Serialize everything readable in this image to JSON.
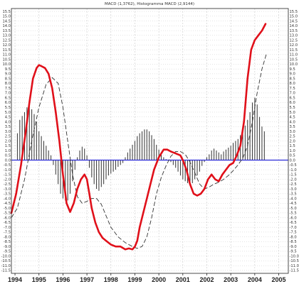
{
  "chart_data": {
    "type": "line",
    "title": "MACD (1,3762), Histogramma MACD (2,9144)",
    "xlabel": "",
    "ylabel": "",
    "xlim": [
      1993.85,
      2005.4
    ],
    "ylim": [
      -11.8,
      15.8
    ],
    "grid": true,
    "x_ticks": [
      "1994",
      "1995",
      "1996",
      "1997",
      "1998",
      "1999",
      "2000",
      "2001",
      "2002",
      "2003",
      "2004",
      "2005"
    ],
    "y_ticks": [
      15.5,
      15.0,
      14.5,
      14.0,
      13.5,
      13.0,
      12.5,
      12.0,
      11.5,
      11.0,
      10.5,
      10.0,
      9.5,
      9.0,
      8.5,
      8.0,
      7.5,
      7.0,
      6.5,
      6.0,
      5.5,
      5.0,
      4.5,
      4.0,
      3.5,
      3.0,
      2.5,
      2.0,
      1.5,
      1.0,
      0.5,
      0.0,
      -0.5,
      -1.0,
      -1.5,
      -2.0,
      -2.5,
      -3.0,
      -3.5,
      -4.0,
      -4.5,
      -5.0,
      -5.5,
      -6.0,
      -6.5,
      -7.0,
      -7.5,
      -8.0,
      -8.5,
      -9.0,
      -9.5,
      -10.0,
      -10.5,
      -11.0,
      -11.5
    ],
    "y_tick_labels": [
      "15.5",
      "15.0",
      "14.5",
      "14.0",
      "13.5",
      "13.0",
      "12.5",
      "12.0",
      "11.5",
      "11.0",
      "10.5",
      "10.0",
      "9.5",
      "9.0",
      "8.5",
      "8.0",
      "7.5",
      "7.0",
      "6.5",
      "6.0",
      "5.5",
      "5.0",
      "4.5",
      "4.0",
      "3.5",
      "3.0",
      "2.5",
      "2.0",
      "1.5",
      "1.0",
      "0.5",
      "0.0",
      "-0.5",
      "-1.0",
      "-1.5",
      "-2.0",
      "-2.5",
      "-3.0",
      "-3.5",
      "-4.0",
      "-4.5",
      "-5.0",
      "-5.5",
      "-6.0",
      "-6.5",
      "-7.0",
      "-7.5",
      "-8.0",
      "-8.5",
      "-9.0",
      "-9.5",
      "-10.0",
      "-10.5",
      "-11.0",
      "-11.5"
    ],
    "zero_line": 0,
    "colors": {
      "macd": "#e0101a",
      "signal": "#333333",
      "histogram": "#333333",
      "zero": "#2a2ad6",
      "grid": "#c8c8c8"
    },
    "series": [
      {
        "style": "solid",
        "x": [
          1993.85,
          1994.05,
          1994.25,
          1994.45,
          1994.6,
          1994.75,
          1994.9,
          1995.0,
          1995.1,
          1995.25,
          1995.4,
          1995.55,
          1995.7,
          1995.85,
          1996.0,
          1996.15,
          1996.3,
          1996.45,
          1996.6,
          1996.75,
          1996.9,
          1997.0,
          1997.1,
          1997.2,
          1997.35,
          1997.5,
          1997.65,
          1997.8,
          1998.0,
          1998.2,
          1998.4,
          1998.6,
          1998.75,
          1998.9,
          1999.0,
          1999.1,
          1999.2,
          1999.35,
          1999.5,
          1999.65,
          1999.8,
          2000.0,
          2000.2,
          2000.35,
          2000.5,
          2000.7,
          2000.9,
          2001.0,
          2001.15,
          2001.3,
          2001.45,
          2001.6,
          2001.75,
          2001.9,
          2002.05,
          2002.2,
          2002.35,
          2002.5,
          2002.65,
          2002.8,
          2002.95,
          2003.1,
          2003.25,
          2003.4,
          2003.55,
          2003.7,
          2003.85,
          2004.0,
          2004.15,
          2004.3,
          2004.45
        ],
        "y": [
          -5.5,
          -3.5,
          -0.5,
          3.0,
          6.0,
          8.5,
          9.6,
          9.9,
          9.8,
          9.6,
          9.0,
          7.5,
          5.0,
          2.0,
          -1.5,
          -4.5,
          -5.4,
          -4.5,
          -3.0,
          -2.0,
          -1.5,
          -2.0,
          -3.5,
          -5.0,
          -6.5,
          -7.5,
          -8.1,
          -8.4,
          -8.8,
          -9.0,
          -9.0,
          -9.3,
          -9.2,
          -9.3,
          -9.0,
          -8.4,
          -7.0,
          -5.5,
          -4.0,
          -2.5,
          -1.0,
          0.3,
          1.1,
          1.1,
          0.9,
          0.7,
          0.5,
          0.0,
          -1.0,
          -2.5,
          -3.5,
          -3.7,
          -3.5,
          -3.0,
          -2.0,
          -1.5,
          -2.0,
          -2.2,
          -1.5,
          -1.0,
          -0.5,
          -0.3,
          0.5,
          1.5,
          4.0,
          8.5,
          11.5,
          12.5,
          13.0,
          13.5,
          14.2
        ]
      },
      {
        "style": "dashed",
        "x": [
          1993.85,
          1994.1,
          1994.4,
          1994.7,
          1995.0,
          1995.3,
          1995.55,
          1995.8,
          1996.0,
          1996.2,
          1996.4,
          1996.6,
          1996.8,
          1997.0,
          1997.2,
          1997.4,
          1997.6,
          1997.8,
          1998.0,
          1998.3,
          1998.6,
          1998.9,
          1999.1,
          1999.3,
          1999.5,
          1999.7,
          1999.9,
          2000.1,
          2000.3,
          2000.5,
          2000.7,
          2000.9,
          2001.1,
          2001.3,
          2001.5,
          2001.7,
          2001.9,
          2002.1,
          2002.3,
          2002.5,
          2002.7,
          2002.9,
          2003.1,
          2003.3,
          2003.5,
          2003.7,
          2003.9,
          2004.1,
          2004.3,
          2004.5
        ],
        "y": [
          -6.0,
          -5.0,
          -2.0,
          2.0,
          5.5,
          7.9,
          8.6,
          8.0,
          5.5,
          2.0,
          -1.5,
          -3.8,
          -4.5,
          -4.3,
          -4.0,
          -4.0,
          -4.6,
          -5.8,
          -7.0,
          -8.0,
          -8.6,
          -9.0,
          -9.2,
          -9.0,
          -8.0,
          -6.0,
          -3.5,
          -1.8,
          -0.6,
          0.4,
          0.9,
          0.9,
          0.6,
          -0.2,
          -1.3,
          -2.5,
          -3.0,
          -2.8,
          -2.5,
          -2.3,
          -2.0,
          -1.6,
          -1.1,
          -0.5,
          0.2,
          1.5,
          4.0,
          7.0,
          9.5,
          11.2
        ]
      }
    ],
    "histogram": {
      "x": [
        1994.1,
        1994.2,
        1994.3,
        1994.4,
        1994.5,
        1994.6,
        1994.7,
        1994.8,
        1994.9,
        1995.0,
        1995.1,
        1995.2,
        1995.3,
        1995.4,
        1995.5,
        1995.6,
        1995.7,
        1995.8,
        1995.9,
        1996.0,
        1996.1,
        1996.2,
        1996.3,
        1996.4,
        1996.5,
        1996.6,
        1996.7,
        1996.8,
        1996.9,
        1997.0,
        1997.1,
        1997.2,
        1997.3,
        1997.4,
        1997.5,
        1997.6,
        1997.7,
        1997.8,
        1997.9,
        1998.0,
        1998.1,
        1998.2,
        1998.3,
        1998.4,
        1998.5,
        1998.6,
        1998.7,
        1998.8,
        1998.9,
        1999.0,
        1999.1,
        1999.2,
        1999.3,
        1999.4,
        1999.5,
        1999.6,
        1999.7,
        1999.8,
        1999.9,
        2000.0,
        2000.1,
        2000.2,
        2000.3,
        2000.4,
        2000.5,
        2000.6,
        2000.7,
        2000.8,
        2000.9,
        2001.0,
        2001.1,
        2001.2,
        2001.3,
        2001.4,
        2001.5,
        2001.6,
        2001.7,
        2001.8,
        2001.9,
        2002.0,
        2002.1,
        2002.2,
        2002.3,
        2002.4,
        2002.5,
        2002.6,
        2002.7,
        2002.8,
        2002.9,
        2003.0,
        2003.1,
        2003.2,
        2003.3,
        2003.4,
        2003.5,
        2003.6,
        2003.7,
        2003.8,
        2003.9,
        2004.0,
        2004.1,
        2004.2,
        2004.3,
        2004.4
      ],
      "values": [
        2.8,
        4.2,
        4.6,
        5.0,
        5.5,
        6.0,
        5.3,
        4.8,
        4.0,
        3.0,
        2.5,
        2.0,
        1.5,
        1.0,
        0.5,
        -0.5,
        -1.5,
        -2.5,
        -3.5,
        -4.0,
        -4.2,
        -4.2,
        -3.5,
        -2.2,
        -1.0,
        0.3,
        1.0,
        1.4,
        1.2,
        0.5,
        -0.8,
        -1.8,
        -2.5,
        -3.0,
        -3.2,
        -2.8,
        -2.5,
        -2.0,
        -1.6,
        -1.4,
        -1.2,
        -1.0,
        -0.7,
        -0.5,
        -0.3,
        0.3,
        0.8,
        1.2,
        1.6,
        2.0,
        2.5,
        2.8,
        3.0,
        3.2,
        3.2,
        3.0,
        2.6,
        2.2,
        1.6,
        1.1,
        0.7,
        0.3,
        0.1,
        0.0,
        -0.2,
        -0.5,
        -0.8,
        -1.2,
        -1.6,
        -2.0,
        -2.2,
        -2.4,
        -2.6,
        -2.4,
        -2.0,
        -1.6,
        -1.2,
        -0.6,
        -0.2,
        0.3,
        0.6,
        1.0,
        1.2,
        1.0,
        0.8,
        0.6,
        0.9,
        1.1,
        1.3,
        1.5,
        1.8,
        2.0,
        2.2,
        2.6,
        3.0,
        3.6,
        4.2,
        5.0,
        6.0,
        6.5,
        5.8,
        4.5,
        3.5,
        3.0
      ]
    }
  }
}
